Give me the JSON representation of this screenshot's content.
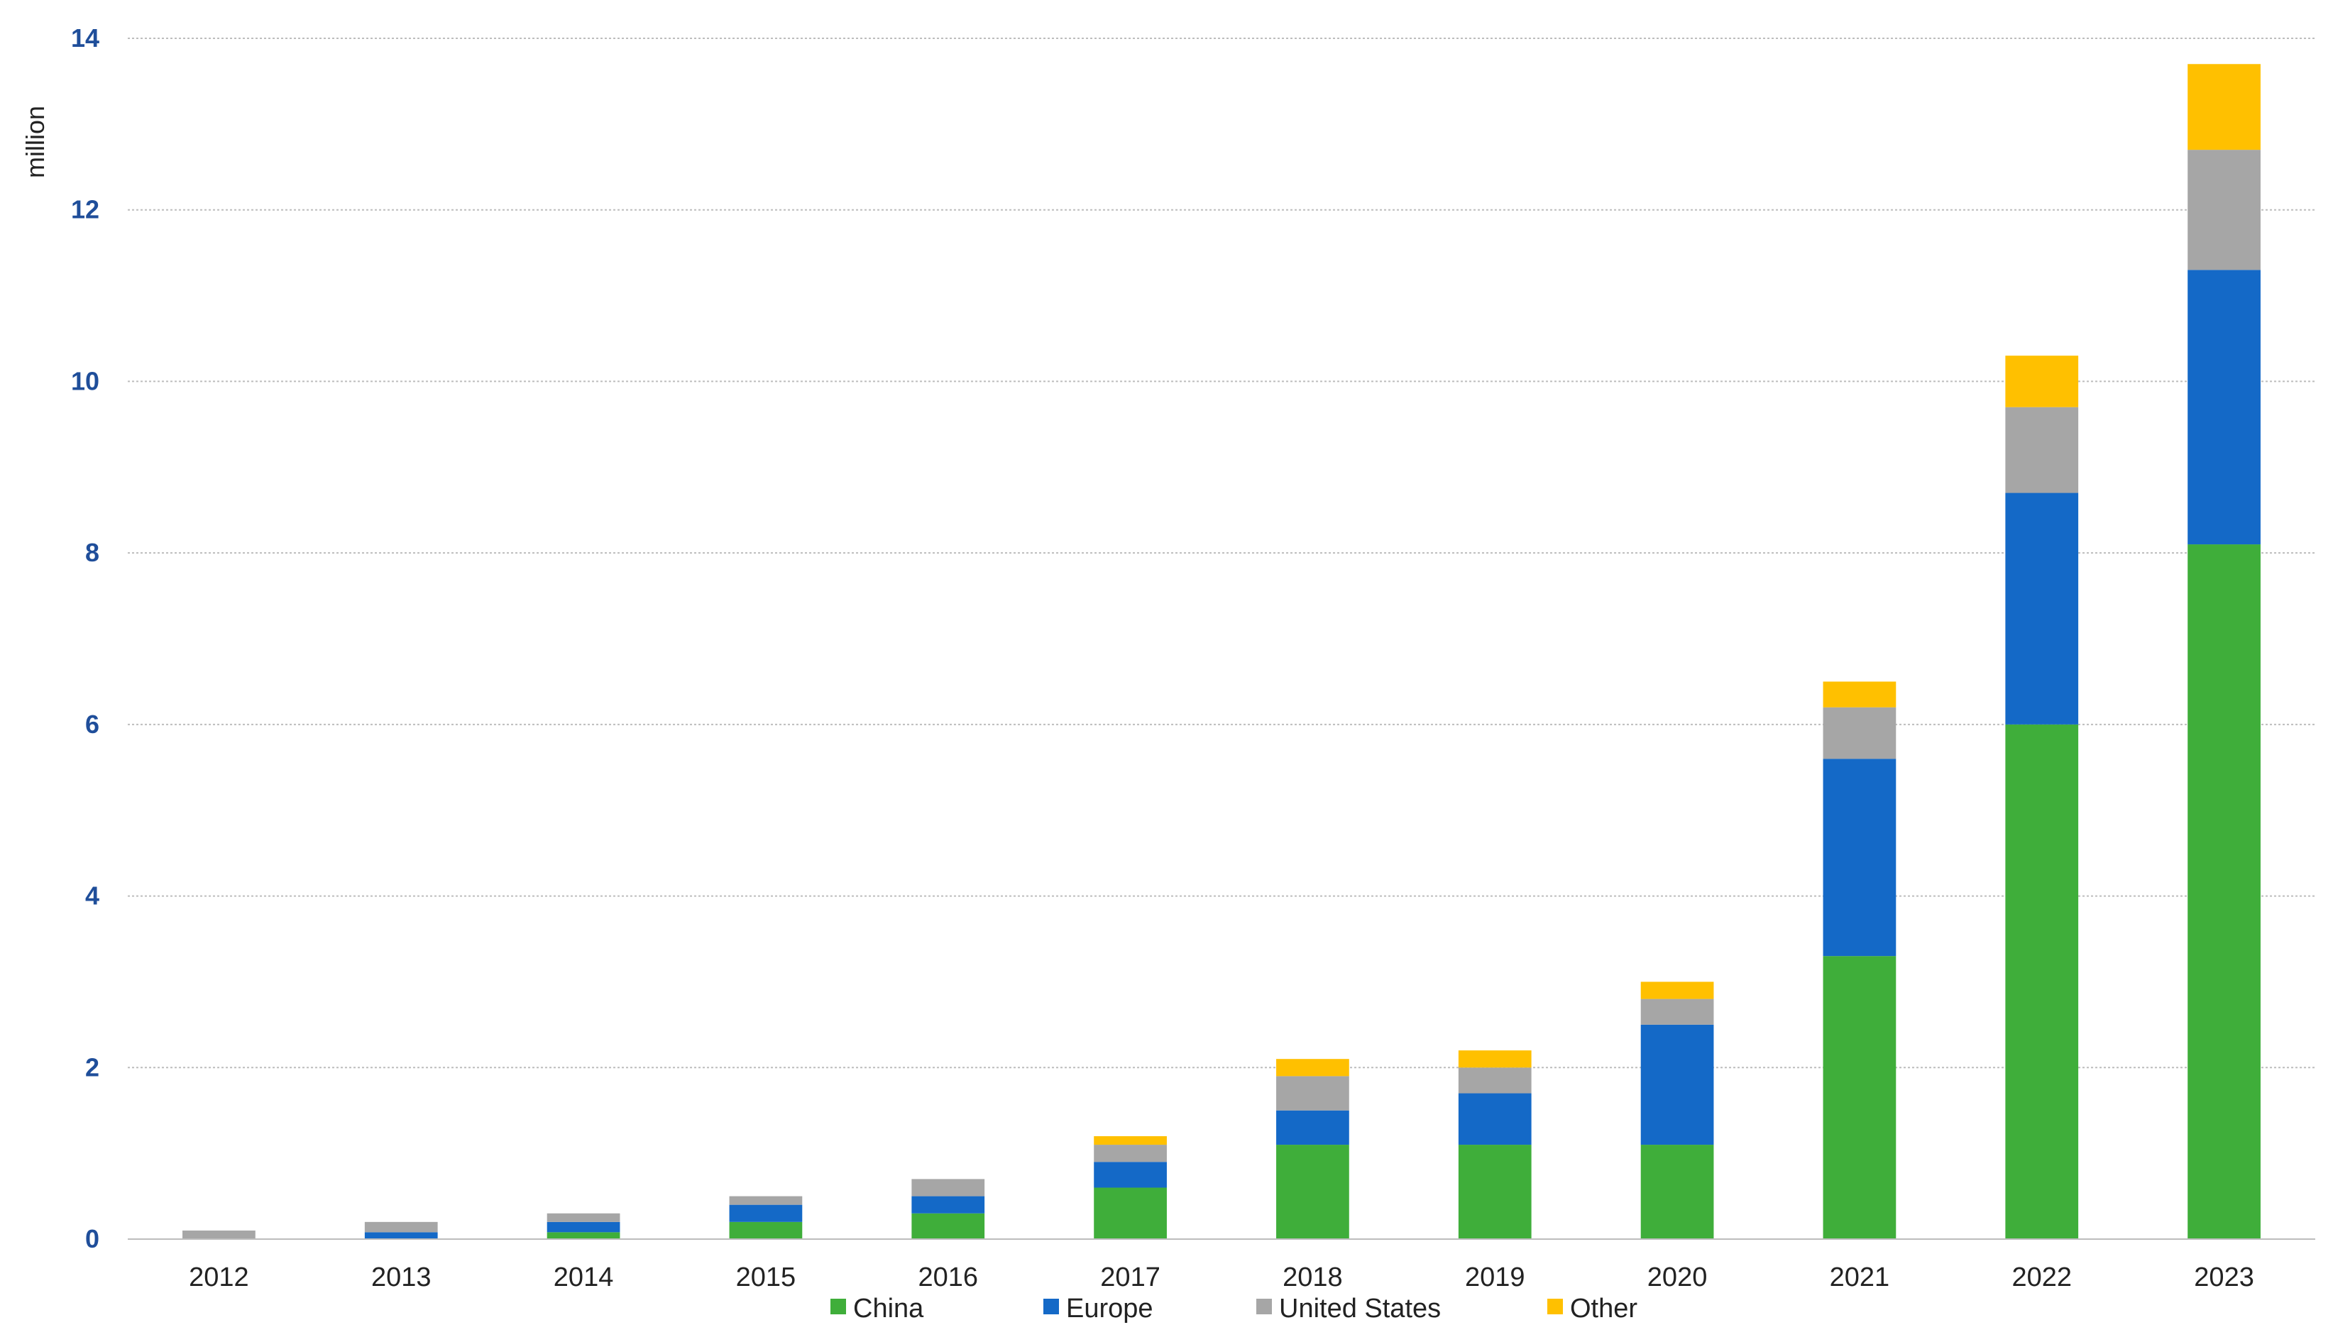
{
  "chart_data": {
    "type": "bar",
    "stacked": true,
    "title": "",
    "xlabel": "",
    "ylabel": "million",
    "ylim": [
      0,
      14
    ],
    "yticks": [
      0,
      2,
      4,
      6,
      8,
      10,
      12,
      14
    ],
    "grid": true,
    "legend_position": "bottom",
    "categories": [
      "2012",
      "2013",
      "2014",
      "2015",
      "2016",
      "2017",
      "2018",
      "2019",
      "2020",
      "2021",
      "2022",
      "2023"
    ],
    "series": [
      {
        "name": "China",
        "color": "#3fae3a",
        "values": [
          0.0,
          0.0,
          0.08,
          0.2,
          0.3,
          0.6,
          1.1,
          1.1,
          1.1,
          3.3,
          6.0,
          8.1
        ]
      },
      {
        "name": "Europe",
        "color": "#1469c7",
        "values": [
          0.0,
          0.08,
          0.12,
          0.2,
          0.2,
          0.3,
          0.4,
          0.6,
          1.4,
          2.3,
          2.7,
          3.2
        ]
      },
      {
        "name": "United States",
        "color": "#a6a6a6",
        "values": [
          0.1,
          0.12,
          0.1,
          0.1,
          0.2,
          0.2,
          0.4,
          0.3,
          0.3,
          0.6,
          1.0,
          1.4
        ]
      },
      {
        "name": "Other",
        "color": "#ffc000",
        "values": [
          0.0,
          0.0,
          0.0,
          0.0,
          0.0,
          0.1,
          0.2,
          0.2,
          0.2,
          0.3,
          0.6,
          1.0
        ]
      }
    ]
  }
}
